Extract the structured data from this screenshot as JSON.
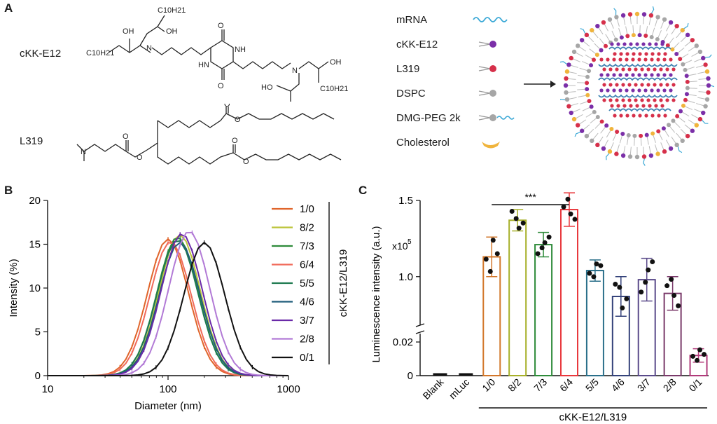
{
  "panel_a": {
    "letter": "A",
    "chem1_name": "cKK-E12",
    "chem2_name": "L319",
    "chem_labels": {
      "c10h21": "C10H21",
      "oh": "OH",
      "ho": "HO",
      "n": "N",
      "nh": "NH",
      "hn": "HN",
      "o": "O"
    },
    "components": [
      {
        "label": "mRNA",
        "icon": "mrna-wave-icon",
        "color": "#3aa8d6"
      },
      {
        "label": "cKK-E12",
        "icon": "lipid-icon",
        "color": "#7b2fa8"
      },
      {
        "label": "L319",
        "icon": "lipid-icon",
        "color": "#d6304a"
      },
      {
        "label": "DSPC",
        "icon": "lipid-icon",
        "color": "#a6a6a6"
      },
      {
        "label": "DMG-PEG 2k",
        "icon": "peg-lipid-icon",
        "color": "#a6a6a6"
      },
      {
        "label": "Cholesterol",
        "icon": "cholesterol-icon",
        "color": "#f0b43c"
      }
    ]
  },
  "panel_b": {
    "letter": "B",
    "legend_title": "cKK-E12/L319",
    "chart_data": {
      "type": "line",
      "xlabel": "Diameter (nm)",
      "ylabel": "Intensity (%)",
      "x_scale": "log",
      "xlim": [
        10,
        1000
      ],
      "ylim": [
        0,
        20
      ],
      "xticks": [
        "10",
        "100",
        "1000"
      ],
      "yticks": [
        "0",
        "5",
        "10",
        "15",
        "20"
      ],
      "series": [
        {
          "name": "1/0",
          "color": "#e0652b",
          "peak_x": 100,
          "peak_y": 15.6,
          "width": 0.17
        },
        {
          "name": "8/2",
          "color": "#bcc43a",
          "peak_x": 125,
          "peak_y": 16.1,
          "width": 0.17
        },
        {
          "name": "7/3",
          "color": "#2e8b3a",
          "peak_x": 120,
          "peak_y": 15.8,
          "width": 0.17
        },
        {
          "name": "6/4",
          "color": "#f06a5a",
          "peak_x": 105,
          "peak_y": 15.3,
          "width": 0.17
        },
        {
          "name": "5/5",
          "color": "#1f7a50",
          "peak_x": 120,
          "peak_y": 15.5,
          "width": 0.17
        },
        {
          "name": "4/6",
          "color": "#1f5c7a",
          "peak_x": 125,
          "peak_y": 15.2,
          "width": 0.17
        },
        {
          "name": "3/7",
          "color": "#6a2aa8",
          "peak_x": 130,
          "peak_y": 16.2,
          "width": 0.17
        },
        {
          "name": "2/8",
          "color": "#b27ad6",
          "peak_x": 150,
          "peak_y": 16.5,
          "width": 0.17
        },
        {
          "name": "0/1",
          "color": "#111111",
          "peak_x": 200,
          "peak_y": 15.2,
          "width": 0.17
        }
      ]
    }
  },
  "panel_c": {
    "letter": "C",
    "significance": "***",
    "group_label": "cKK-E12/L319",
    "multiplier": "x10^5",
    "chart_data": {
      "type": "bar",
      "ylabel": "Luminescence intensity (a.u.)",
      "y_scale": "broken",
      "yticks": [
        "0",
        "0.02",
        "1.0",
        "1.5"
      ],
      "categories": [
        "Blank",
        "mLuc",
        "1/0",
        "8/2",
        "7/3",
        "6/4",
        "5/5",
        "4/6",
        "3/7",
        "2/8",
        "0/1"
      ],
      "values": [
        0.0005,
        0.0005,
        1.13,
        1.37,
        1.21,
        1.44,
        1.04,
        0.87,
        0.98,
        0.89,
        0.012
      ],
      "errors": [
        0.0003,
        0.0003,
        0.13,
        0.07,
        0.08,
        0.11,
        0.07,
        0.13,
        0.14,
        0.11,
        0.004
      ],
      "colors": [
        "#111111",
        "#111111",
        "#d2772b",
        "#a7b02a",
        "#2e8b3a",
        "#e8383d",
        "#2a6f8a",
        "#34427a",
        "#5a4a8a",
        "#7a3a6a",
        "#b03a7a"
      ]
    }
  }
}
